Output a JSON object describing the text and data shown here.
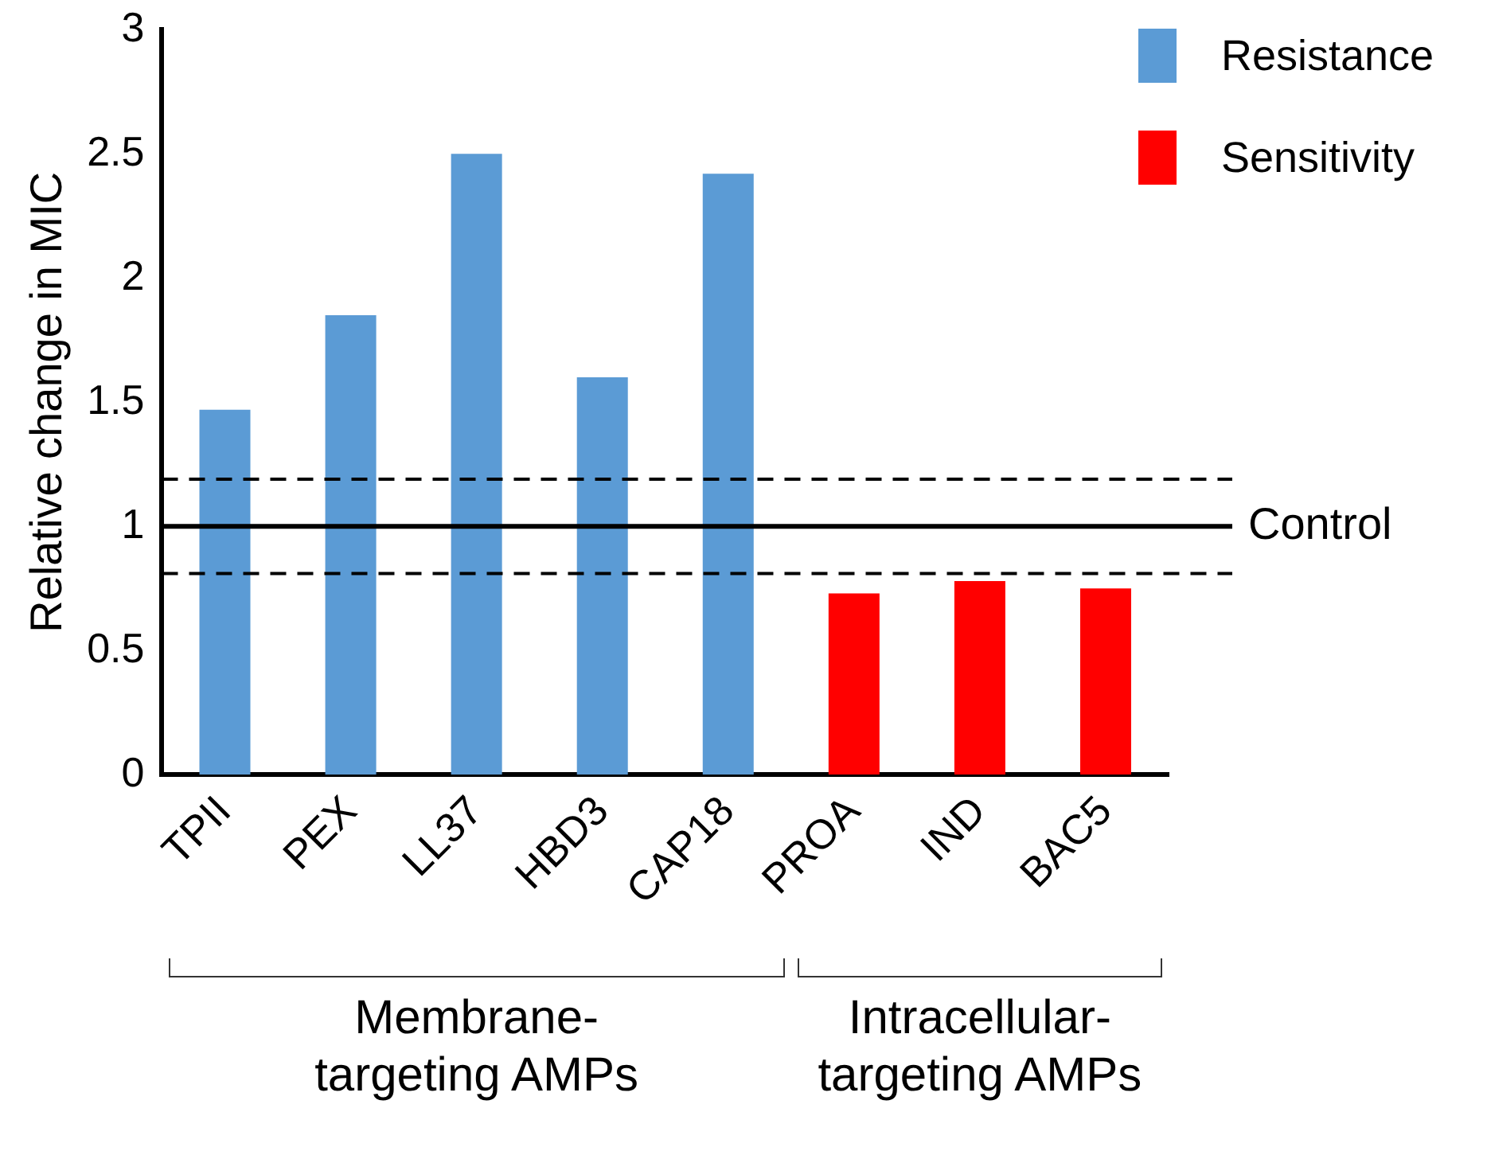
{
  "chart_data": {
    "type": "bar",
    "ylabel": "Relative change in MIC",
    "categories": [
      "TPII",
      "PEX",
      "LL37",
      "HBD3",
      "CAP18",
      "PROA",
      "IND",
      "BAC5"
    ],
    "series": [
      {
        "name": "Resistance",
        "color": "#5b9bd5",
        "values": [
          1.47,
          1.85,
          2.5,
          1.6,
          2.42,
          null,
          null,
          null
        ]
      },
      {
        "name": "Sensitivity",
        "color": "#ff0000",
        "values": [
          null,
          null,
          null,
          null,
          null,
          0.73,
          0.78,
          0.75
        ]
      }
    ],
    "ylim": [
      0,
      3
    ],
    "yticks": [
      0,
      0.5,
      1,
      1.5,
      2,
      2.5,
      3
    ],
    "legend": "top right",
    "ref_lines": [
      {
        "axis": "y",
        "value": 1,
        "label": "Control",
        "line_style": "solid",
        "color": "#000000"
      },
      {
        "axis": "y",
        "value": 1.19,
        "label": null,
        "line_style": "dashed",
        "color": "#000000"
      },
      {
        "axis": "y",
        "value": 0.81,
        "label": null,
        "line_style": "dashed",
        "color": "#000000"
      }
    ],
    "annotations": [
      "Membrane-\ntargeting AMPs",
      "Intracellular-\ntargeting AMPs"
    ]
  }
}
